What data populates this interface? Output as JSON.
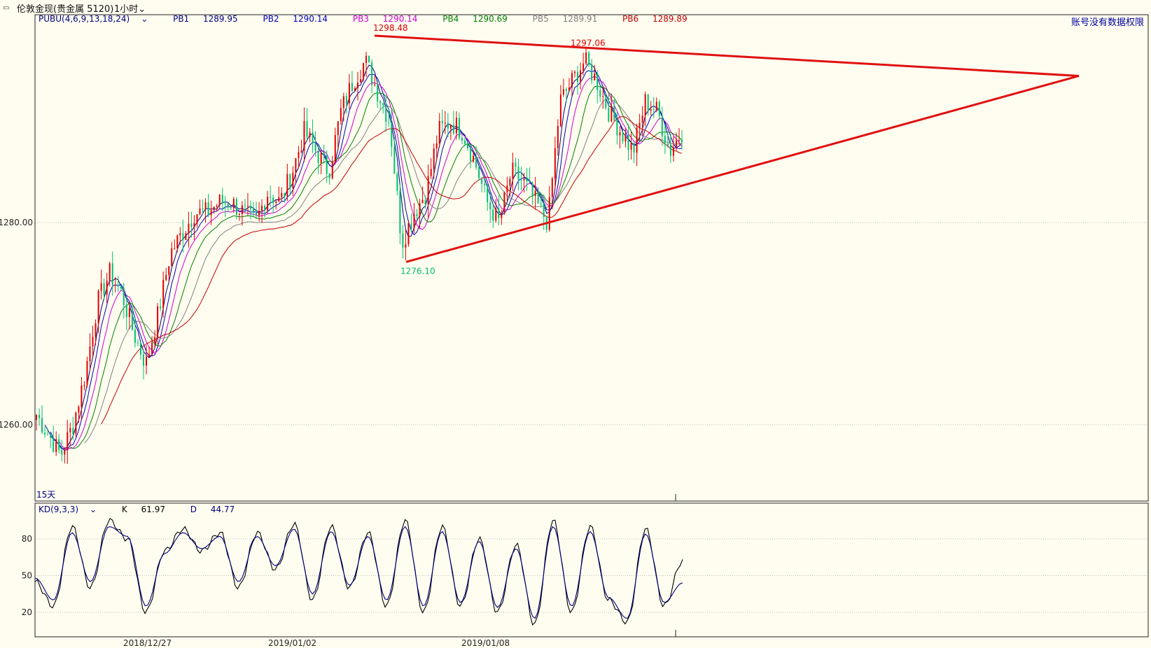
{
  "window": {
    "icon": "restore-icon",
    "instrument": "伦敦金现(贵金属 5120)",
    "period": "1小时"
  },
  "permission_note": "账号没有数据权限",
  "legend": {
    "indicator": "PUBU(4,6,9,13,18,24)",
    "items": [
      {
        "label": "PB1",
        "value": "1289.95",
        "color": "#000080"
      },
      {
        "label": "PB2",
        "value": "1290.14",
        "color": "#0000c0"
      },
      {
        "label": "PB3",
        "value": "1290.14",
        "color": "#d000d0"
      },
      {
        "label": "PB4",
        "value": "1290.69",
        "color": "#008000"
      },
      {
        "label": "PB5",
        "value": "1289.91",
        "color": "#808080"
      },
      {
        "label": "PB6",
        "value": "1289.89",
        "color": "#c00000"
      }
    ]
  },
  "kd_legend": {
    "indicator": "KD(9,3,3)",
    "items": [
      {
        "label": "K",
        "value": "61.97",
        "color": "#000000"
      },
      {
        "label": "D",
        "value": "44.77",
        "color": "#000080"
      }
    ]
  },
  "colors": {
    "up": "#e00000",
    "down": "#00c070",
    "trendline": "#e01010",
    "background": "#fffdf0",
    "grid": "#bdbdbd"
  },
  "chart_data": [
    {
      "type": "candlestick",
      "instrument": "伦敦金现",
      "timeframe": "1小时",
      "y_ticks": [
        {
          "value": 1260,
          "label": "1260.00"
        },
        {
          "value": 1280,
          "label": "1280.00"
        }
      ],
      "ylim": [
        1252.4,
        1299.9
      ],
      "x_tick_labels": [
        "2018/12/27",
        "2019/01/02",
        "2019/01/08"
      ],
      "annotations": [
        {
          "text": "1298.48",
          "value": 1298.48,
          "color": "#e00000"
        },
        {
          "text": "1297.06",
          "value": 1297.06,
          "color": "#e00000"
        },
        {
          "text": "1276.10",
          "value": 1276.1,
          "color": "#00c070"
        },
        {
          "text": "15天",
          "color": "#000080"
        }
      ],
      "approx_close_path": [
        1261,
        1259,
        1257,
        1260,
        1265,
        1272,
        1275,
        1273,
        1269,
        1266,
        1271,
        1277,
        1279,
        1281,
        1281,
        1282,
        1282,
        1281,
        1280,
        1283,
        1282,
        1285,
        1289,
        1287,
        1285,
        1291,
        1294,
        1296,
        1293,
        1290,
        1278,
        1281,
        1283,
        1289,
        1290,
        1289,
        1286,
        1282,
        1280,
        1285,
        1284,
        1282,
        1280,
        1292,
        1294,
        1296,
        1294,
        1291,
        1289,
        1287,
        1292,
        1291,
        1287,
        1289
      ],
      "trendlines": [
        {
          "from": {
            "value": 1298.48
          },
          "to": {
            "value": 1294.5
          },
          "color": "#e01010"
        },
        {
          "from": {
            "value": 1276.1
          },
          "to": {
            "value": 1294.5
          },
          "color": "#e01010"
        }
      ]
    },
    {
      "type": "line",
      "name": "KD(9,3,3)",
      "y_ticks": [
        20,
        50,
        80
      ],
      "ylim": [
        10,
        100
      ],
      "series": [
        {
          "name": "K",
          "color": "#000000",
          "approx_path": [
            45,
            25,
            90,
            40,
            95,
            80,
            20,
            70,
            88,
            70,
            85,
            40,
            85,
            55,
            92,
            30,
            90,
            40,
            85,
            25,
            95,
            20,
            90,
            25,
            80,
            20,
            75,
            10,
            95,
            20,
            90,
            30,
            12,
            88,
            25,
            62
          ]
        },
        {
          "name": "D",
          "color": "#000080",
          "approx_path": [
            48,
            30,
            85,
            45,
            90,
            82,
            25,
            68,
            85,
            72,
            82,
            45,
            82,
            58,
            88,
            35,
            86,
            42,
            82,
            30,
            90,
            25,
            86,
            28,
            78,
            24,
            72,
            15,
            90,
            25,
            86,
            32,
            15,
            84,
            28,
            44
          ]
        }
      ]
    }
  ]
}
